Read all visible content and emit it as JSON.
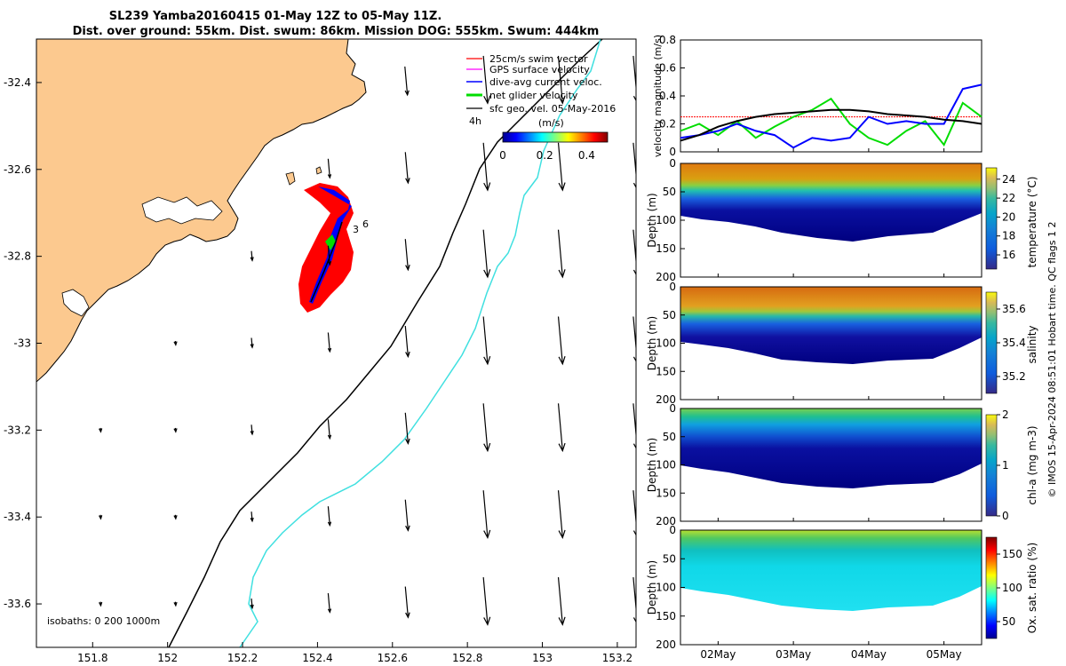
{
  "title": {
    "line1": "SL239 Yamba20160415 01-May 12Z to 05-May 11Z.",
    "line2": "Dist. over ground: 55km. Dist. swum: 86km. Mission DOG: 555km. Swum: 444km"
  },
  "side_credit": "© IMOS 15-Apr-2024 08:51:01 Hobart time. QC flags 1 2",
  "map": {
    "xlim": [
      151.65,
      153.25
    ],
    "ylim": [
      -33.7,
      -32.3
    ],
    "xticks": [
      "151.8",
      "152",
      "152.2",
      "152.4",
      "152.6",
      "152.8",
      "153",
      "153.2"
    ],
    "xtick_values": [
      151.8,
      152.0,
      152.2,
      152.4,
      152.6,
      152.8,
      153.0,
      153.2
    ],
    "yticks": [
      "-32.4",
      "-32.6",
      "-32.8",
      "-33",
      "-33.2",
      "-33.4",
      "-33.6"
    ],
    "ytick_values": [
      -32.4,
      -32.6,
      -32.8,
      -33.0,
      -33.2,
      -33.4,
      -33.6
    ],
    "legend": [
      {
        "label": "25cm/s swim vector",
        "color": "#ff0000"
      },
      {
        "label": "GPS surface velocity",
        "color": "#ff00ff"
      },
      {
        "label": "dive-avg current veloc.",
        "color": "#0000ff"
      },
      {
        "label": "net glider velocity",
        "color": "#00dd00"
      },
      {
        "label": "sfc geo. vel. 05-May-2016",
        "color": "#000000"
      }
    ],
    "scale_label": "4h",
    "colorbar": {
      "label": "(m/s)",
      "ticks": [
        "0",
        "0.2",
        "0.4"
      ],
      "tick_values": [
        0,
        0.2,
        0.4
      ],
      "range": [
        0,
        0.5
      ]
    },
    "isobaths_label": "isobaths: 0   200  1000m",
    "track_labels": [
      "3",
      "6"
    ],
    "land_color": "#fcc98f",
    "isobath_200_color": "#000000",
    "isobath_1000_color": "#40e0e0"
  },
  "velocity_panel": {
    "ylabel": "velocity magnitude (m/s)",
    "ylim": [
      0,
      0.8
    ],
    "yticks": [
      "0",
      "0.2",
      "0.4",
      "0.6",
      "0.8"
    ],
    "ytick_values": [
      0,
      0.2,
      0.4,
      0.6,
      0.8
    ],
    "series": [
      {
        "color": "#ff0000",
        "values": [
          0.25,
          0.25,
          0.25,
          0.25,
          0.25,
          0.25,
          0.25,
          0.25,
          0.25,
          0.25,
          0.25,
          0.25,
          0.25,
          0.25,
          0.25,
          0.25,
          0.25
        ]
      },
      {
        "color": "#00dd00",
        "values": [
          0.15,
          0.2,
          0.12,
          0.22,
          0.1,
          0.18,
          0.25,
          0.3,
          0.38,
          0.2,
          0.1,
          0.05,
          0.15,
          0.22,
          0.05,
          0.35,
          0.25
        ]
      },
      {
        "color": "#0000ff",
        "values": [
          0.1,
          0.12,
          0.15,
          0.2,
          0.15,
          0.12,
          0.03,
          0.1,
          0.08,
          0.1,
          0.25,
          0.2,
          0.22,
          0.2,
          0.2,
          0.45,
          0.48
        ]
      },
      {
        "color": "#000000",
        "values": [
          0.08,
          0.12,
          0.18,
          0.22,
          0.25,
          0.27,
          0.28,
          0.29,
          0.3,
          0.3,
          0.29,
          0.27,
          0.26,
          0.25,
          0.23,
          0.22,
          0.2
        ]
      }
    ]
  },
  "depth_panels": [
    {
      "cblabel": "temperature (°C)",
      "cbticks": [
        "24",
        "22",
        "20",
        "18",
        "16"
      ],
      "cbtick_values": [
        24,
        22,
        20,
        18,
        16
      ],
      "range": [
        14.5,
        25.2
      ]
    },
    {
      "cblabel": "salinity",
      "cbticks": [
        "35.6",
        "35.4",
        "35.2"
      ],
      "cbtick_values": [
        35.6,
        35.4,
        35.2
      ],
      "range": [
        35.1,
        35.7
      ]
    },
    {
      "cblabel": "chl-a (mg m-3)",
      "cbticks": [
        "2",
        "1",
        "0"
      ],
      "cbtick_values": [
        2,
        1,
        0
      ],
      "range": [
        0,
        2
      ]
    },
    {
      "cblabel": "Ox. sat. ratio (%)",
      "cbticks": [
        "150",
        "100",
        "50"
      ],
      "cbtick_values": [
        150,
        100,
        50
      ],
      "range": [
        25,
        175
      ]
    }
  ],
  "depth_axis": {
    "ylabel": "Depth (m)",
    "yticks": [
      "0",
      "50",
      "100",
      "150",
      "200"
    ],
    "ytick_values": [
      0,
      50,
      100,
      150,
      200
    ]
  },
  "time_axis": {
    "ticks": [
      "02May",
      "03May",
      "04May",
      "05May"
    ],
    "tick_values": [
      1,
      2,
      3,
      4
    ],
    "xlim": [
      0.5,
      4.5
    ]
  }
}
